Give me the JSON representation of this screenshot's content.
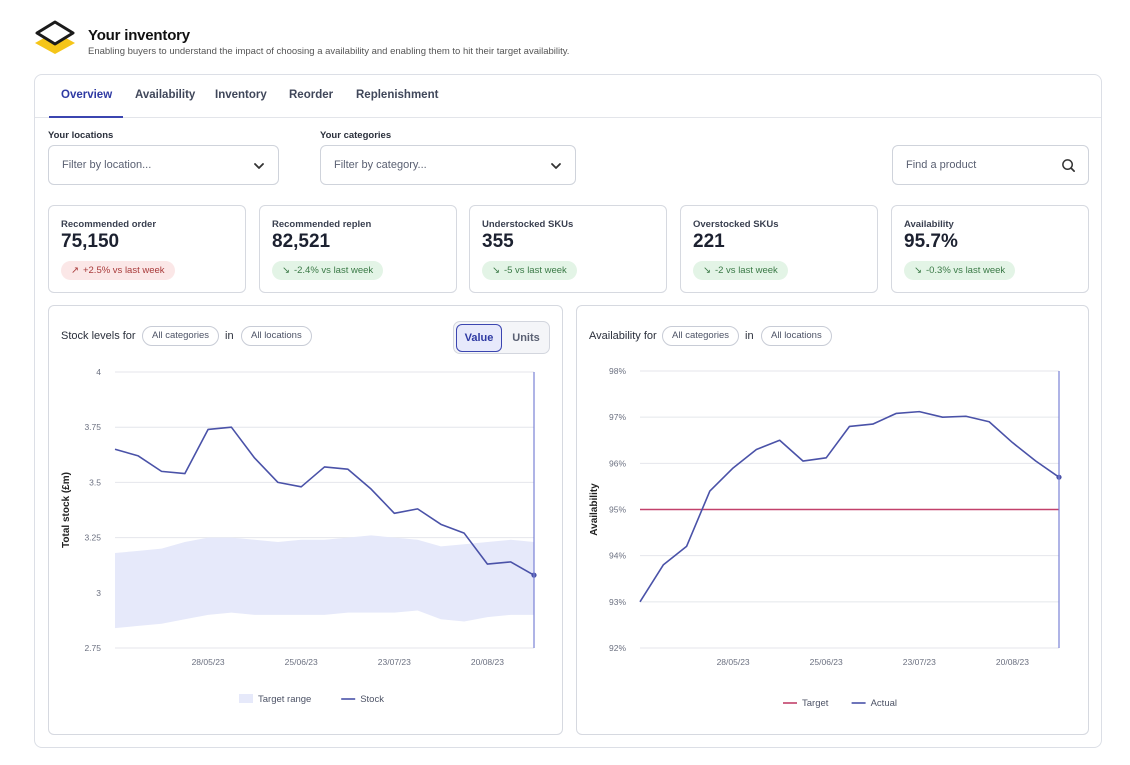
{
  "header": {
    "title": "Your inventory",
    "subtitle": "Enabling buyers to understand the impact of choosing a availability and enabling them to hit their target availability."
  },
  "tabs": [
    {
      "label": "Overview",
      "active": true
    },
    {
      "label": "Availability",
      "active": false
    },
    {
      "label": "Inventory",
      "active": false
    },
    {
      "label": "Reorder",
      "active": false
    },
    {
      "label": "Replenishment",
      "active": false
    }
  ],
  "filters": {
    "locations_label": "Your locations",
    "locations_placeholder": "Filter by location...",
    "categories_label": "Your categories",
    "categories_placeholder": "Filter by category...",
    "search_placeholder": "Find a product"
  },
  "kpis": [
    {
      "title": "Recommended order",
      "value": "75,150",
      "change": "+2.5% vs last week",
      "direction": "up"
    },
    {
      "title": "Recommended replen",
      "value": "82,521",
      "change": "-2.4% vs last week",
      "direction": "down"
    },
    {
      "title": "Understocked SKUs",
      "value": "355",
      "change": "-5 vs last week",
      "direction": "down"
    },
    {
      "title": "Overstocked SKUs",
      "value": "221",
      "change": "-2 vs last week",
      "direction": "down"
    },
    {
      "title": "Availability",
      "value": "95.7%",
      "change": "-0.3% vs last week",
      "direction": "down"
    }
  ],
  "stock_panel": {
    "title": "Stock levels for",
    "category_chip": "All categories",
    "in_text": "in",
    "location_chip": "All locations",
    "toggle_value": "Value",
    "toggle_units": "Units"
  },
  "availability_panel": {
    "title": "Availability for",
    "category_chip": "All categories",
    "in_text": "in",
    "location_chip": "All locations"
  },
  "colors": {
    "accent": "#3b45b0",
    "line": "#4a52a8",
    "target_band": "#e6e9fa",
    "target_line": "#c2416b",
    "logo_yellow": "#f5c518"
  },
  "chart_data": [
    {
      "type": "line",
      "ylabel": "Total stock (£m)",
      "ylim": [
        2.75,
        4
      ],
      "yticks": [
        "4",
        "3.75",
        "3.5",
        "3.25",
        "3",
        "2.75"
      ],
      "xticks": [
        "28/05/23",
        "25/06/23",
        "23/07/23",
        "20/08/23"
      ],
      "legend": [
        "Target range",
        "Stock"
      ],
      "series": [
        {
          "name": "Stock",
          "values": [
            3.65,
            3.62,
            3.55,
            3.54,
            3.74,
            3.75,
            3.61,
            3.5,
            3.48,
            3.57,
            3.56,
            3.47,
            3.36,
            3.38,
            3.31,
            3.27,
            3.13,
            3.14,
            3.08
          ]
        },
        {
          "name": "Target range",
          "upper": [
            3.18,
            3.19,
            3.2,
            3.23,
            3.25,
            3.25,
            3.24,
            3.23,
            3.24,
            3.24,
            3.25,
            3.26,
            3.25,
            3.24,
            3.21,
            3.22,
            3.23,
            3.24,
            3.23
          ],
          "lower": [
            2.84,
            2.85,
            2.86,
            2.88,
            2.9,
            2.91,
            2.9,
            2.9,
            2.9,
            2.9,
            2.91,
            2.91,
            2.91,
            2.92,
            2.88,
            2.87,
            2.89,
            2.9,
            2.9
          ]
        }
      ]
    },
    {
      "type": "line",
      "ylabel": "Availability",
      "ylim": [
        92,
        98
      ],
      "yticks": [
        "98%",
        "97%",
        "96%",
        "95%",
        "94%",
        "93%",
        "92%"
      ],
      "xticks": [
        "28/05/23",
        "25/06/23",
        "23/07/23",
        "20/08/23"
      ],
      "legend": [
        "Target",
        "Actual"
      ],
      "series": [
        {
          "name": "Target",
          "values": [
            95,
            95
          ]
        },
        {
          "name": "Actual",
          "values": [
            93.0,
            93.8,
            94.2,
            95.4,
            95.9,
            96.3,
            96.5,
            96.05,
            96.12,
            96.8,
            96.85,
            97.08,
            97.12,
            97.0,
            97.02,
            96.9,
            96.45,
            96.05,
            95.7
          ]
        }
      ]
    }
  ]
}
